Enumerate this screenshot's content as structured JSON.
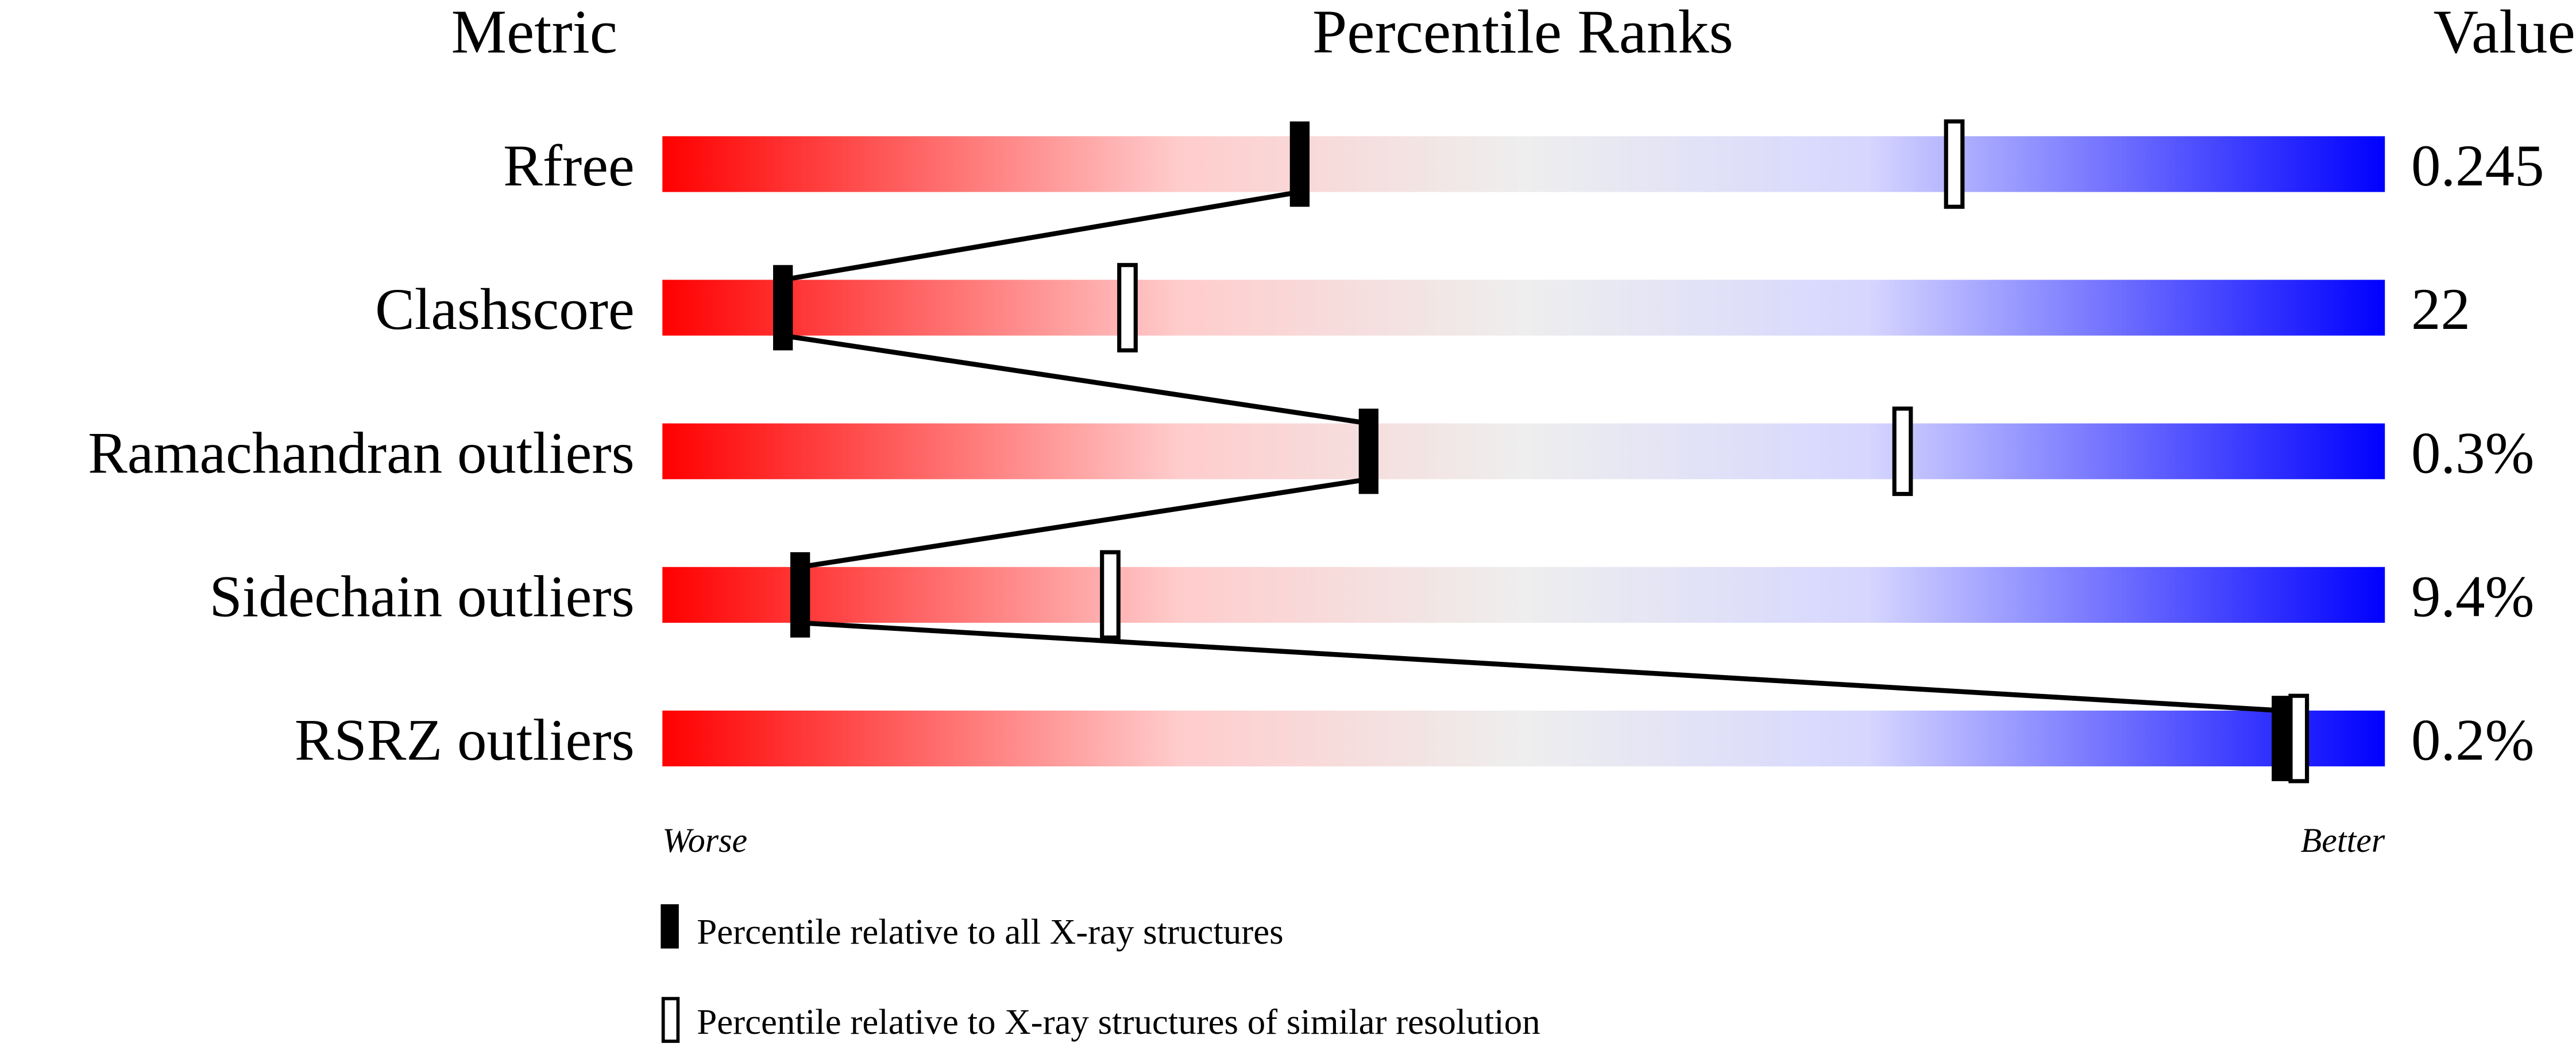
{
  "chart_data": {
    "type": "bar",
    "headers": {
      "metric": "Metric",
      "ranks": "Percentile Ranks",
      "value": "Value"
    },
    "xlim": [
      0,
      100
    ],
    "metrics": [
      {
        "name": "Rfree",
        "value": "0.245",
        "percentile_all": 37,
        "percentile_similar": 75
      },
      {
        "name": "Clashscore",
        "value": "22",
        "percentile_all": 7,
        "percentile_similar": 27
      },
      {
        "name": "Ramachandran outliers",
        "value": "0.3%",
        "percentile_all": 41,
        "percentile_similar": 72
      },
      {
        "name": "Sidechain outliers",
        "value": "9.4%",
        "percentile_all": 8,
        "percentile_similar": 26
      },
      {
        "name": "RSRZ outliers",
        "value": "0.2%",
        "percentile_all": 94,
        "percentile_similar": 95
      }
    ],
    "axis_labels": {
      "left": "Worse",
      "right": "Better"
    },
    "legend": {
      "filled": "Percentile relative to all X-ray structures",
      "open": "Percentile relative to X-ray structures of similar resolution",
      "placement": "bottom"
    },
    "gradient_colors": [
      "#ff0000",
      "#ffcccc",
      "#eeeeee",
      "#d6d6ff",
      "#0000ff"
    ]
  }
}
